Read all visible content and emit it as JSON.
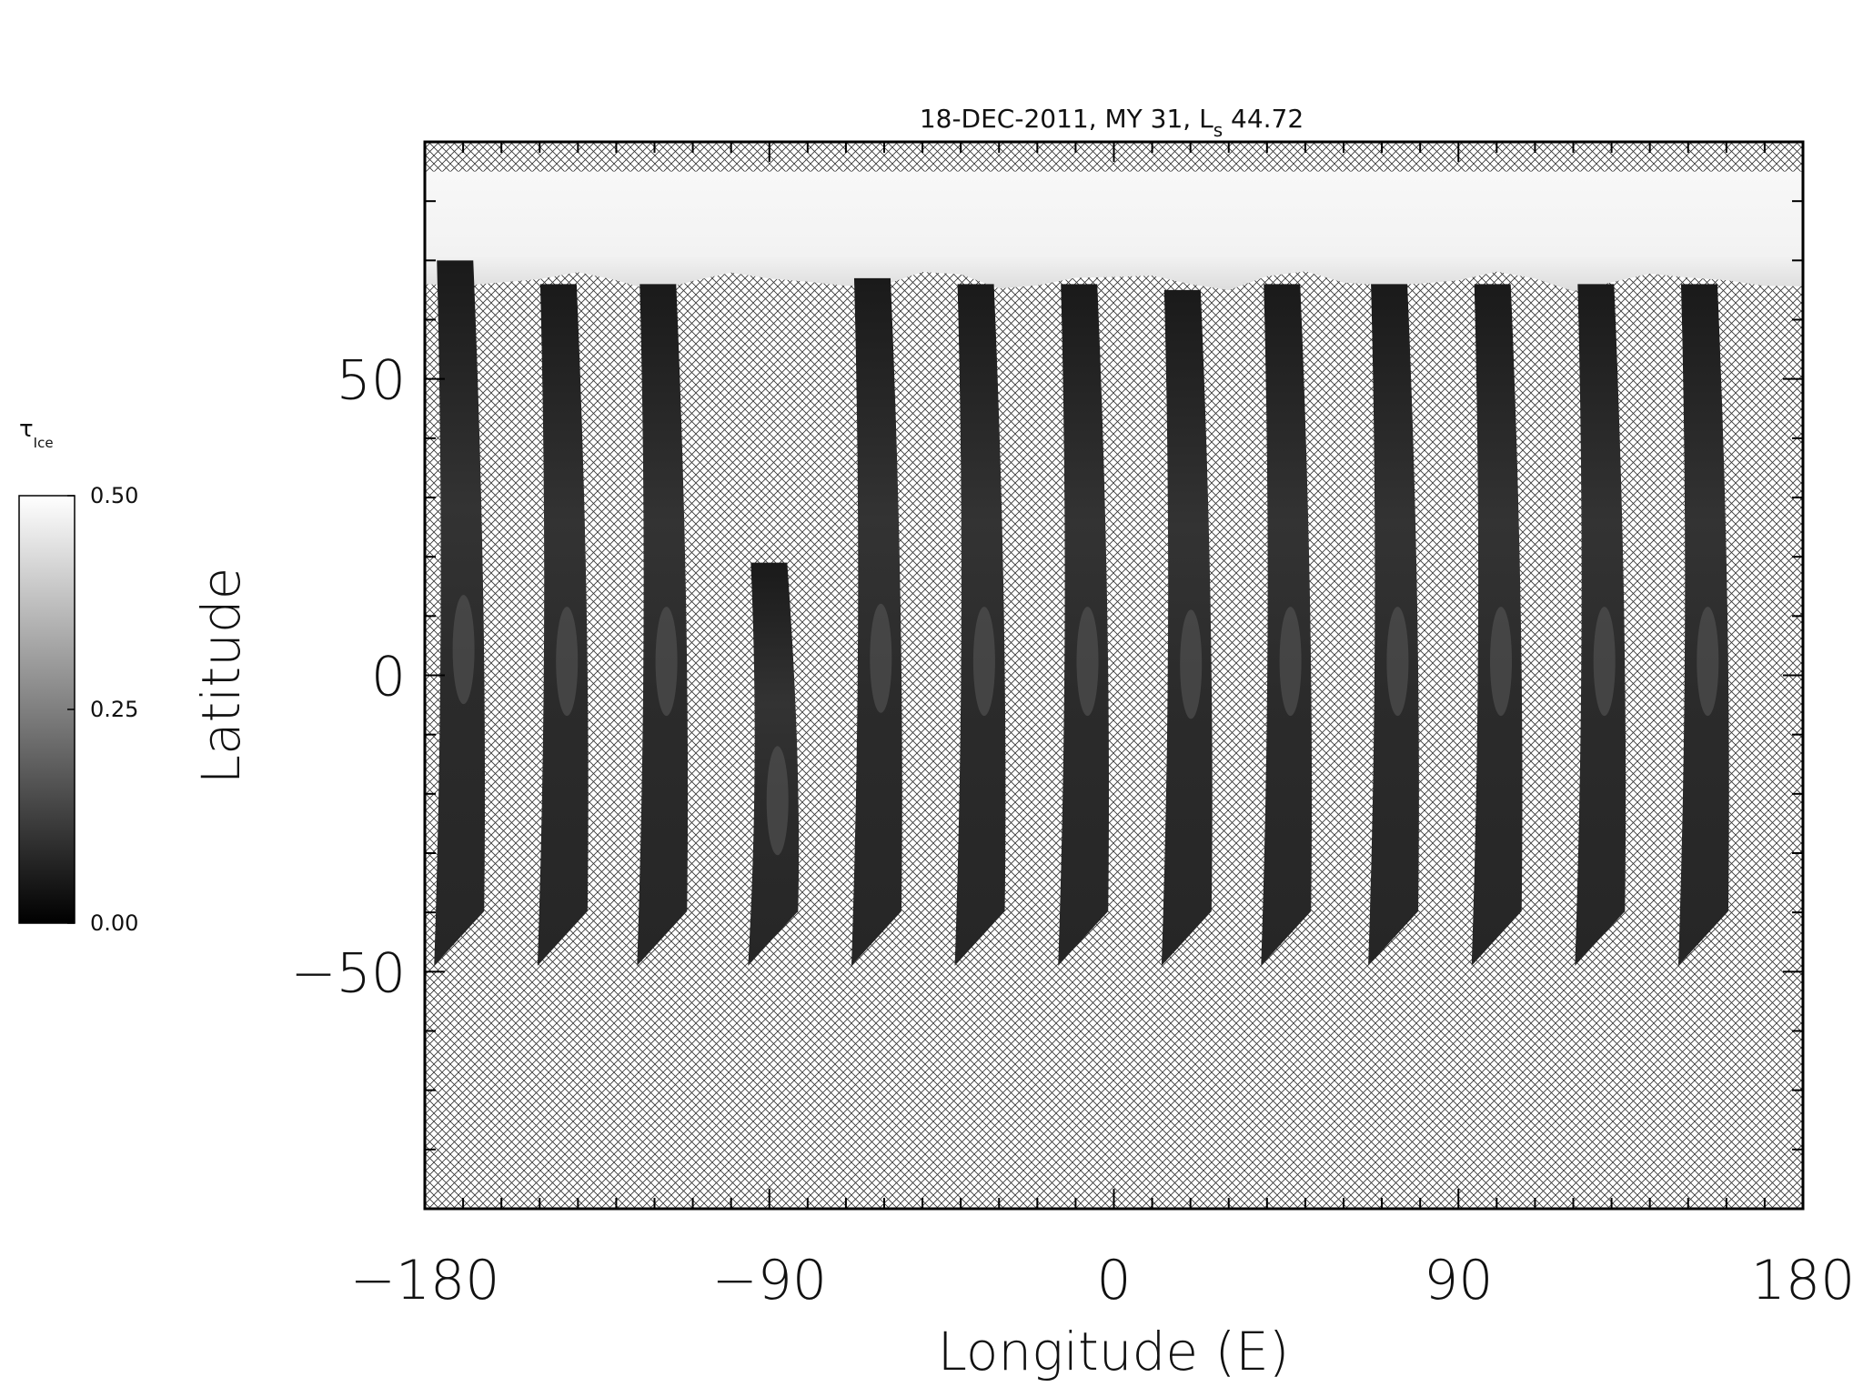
{
  "chart_data": {
    "type": "heatmap",
    "title": "18-DEC-2011, MY 31,  L",
    "title_sub": "s",
    "title_tail": " 44.72",
    "xlabel": "Longitude (E)",
    "ylabel": "Latitude",
    "xlim": [
      -180,
      180
    ],
    "ylim": [
      -90,
      90
    ],
    "x_tick_labels": [
      "−180",
      "−90",
      "0",
      "90",
      "180"
    ],
    "x_tick_values": [
      -180,
      -90,
      0,
      90,
      180
    ],
    "y_tick_labels": [
      "50",
      "0",
      "−50"
    ],
    "y_tick_values": [
      50,
      0,
      -50
    ],
    "no_data_pattern": "crosshatch",
    "colorbar": {
      "label": "τ",
      "label_sub": "Ice",
      "range": [
        0.0,
        0.5
      ],
      "tick_labels": [
        "0.50",
        "0.25",
        "0.00"
      ],
      "tick_values": [
        0.5,
        0.25,
        0.0
      ],
      "colormap": "grayscale"
    },
    "swaths": [
      {
        "lon": -174,
        "lat_top": 70,
        "lat_bottom": -49
      },
      {
        "lon": -147,
        "lat_top": 66,
        "lat_bottom": -49
      },
      {
        "lon": -121,
        "lat_top": 66,
        "lat_bottom": -49
      },
      {
        "lon": -92,
        "lat_top": 19,
        "lat_bottom": -49
      },
      {
        "lon": -65,
        "lat_top": 67,
        "lat_bottom": -49
      },
      {
        "lon": -38,
        "lat_top": 66,
        "lat_bottom": -49
      },
      {
        "lon": -11,
        "lat_top": 66,
        "lat_bottom": -49
      },
      {
        "lon": 16,
        "lat_top": 65,
        "lat_bottom": -49
      },
      {
        "lon": 42,
        "lat_top": 66,
        "lat_bottom": -49
      },
      {
        "lon": 70,
        "lat_top": 66,
        "lat_bottom": -49
      },
      {
        "lon": 97,
        "lat_top": 66,
        "lat_bottom": -49
      },
      {
        "lon": 124,
        "lat_top": 66,
        "lat_bottom": -49
      },
      {
        "lon": 151,
        "lat_top": 66,
        "lat_bottom": -49
      }
    ],
    "polar_band": {
      "lat_top": 85,
      "lat_bottom": 66
    }
  }
}
